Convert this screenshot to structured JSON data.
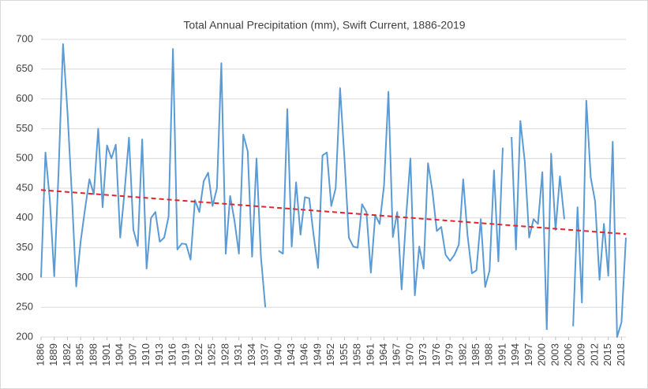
{
  "chart_data": {
    "type": "line",
    "title": "Total Annual Precipitation (mm), Swift Current, 1886-2019",
    "x": [
      1886,
      1887,
      1888,
      1889,
      1890,
      1891,
      1892,
      1893,
      1894,
      1895,
      1896,
      1897,
      1898,
      1899,
      1900,
      1901,
      1902,
      1903,
      1904,
      1905,
      1906,
      1907,
      1908,
      1909,
      1910,
      1911,
      1912,
      1913,
      1914,
      1915,
      1916,
      1917,
      1918,
      1919,
      1920,
      1921,
      1922,
      1923,
      1924,
      1925,
      1926,
      1927,
      1928,
      1929,
      1930,
      1931,
      1932,
      1933,
      1934,
      1935,
      1936,
      1937,
      1938,
      1939,
      1940,
      1941,
      1942,
      1943,
      1944,
      1945,
      1946,
      1947,
      1948,
      1949,
      1950,
      1951,
      1952,
      1953,
      1954,
      1955,
      1956,
      1957,
      1958,
      1959,
      1960,
      1961,
      1962,
      1963,
      1964,
      1965,
      1966,
      1967,
      1968,
      1969,
      1970,
      1971,
      1972,
      1973,
      1974,
      1975,
      1976,
      1977,
      1978,
      1979,
      1980,
      1981,
      1982,
      1983,
      1984,
      1985,
      1986,
      1987,
      1988,
      1989,
      1990,
      1991,
      1992,
      1993,
      1994,
      1995,
      1996,
      1997,
      1998,
      1999,
      2000,
      2001,
      2002,
      2003,
      2004,
      2005,
      2006,
      2007,
      2008,
      2009,
      2010,
      2011,
      2012,
      2013,
      2014,
      2015,
      2016,
      2017,
      2018,
      2019
    ],
    "series": [
      {
        "color": "#5b9bd5",
        "values": [
          300,
          510,
          430,
          302,
          480,
          692,
          580,
          440,
          285,
          360,
          415,
          465,
          440,
          550,
          418,
          522,
          500,
          523,
          367,
          445,
          535,
          380,
          353,
          532,
          315,
          400,
          410,
          360,
          367,
          402,
          684,
          347,
          357,
          356,
          330,
          430,
          410,
          462,
          476,
          420,
          450,
          660,
          340,
          437,
          395,
          340,
          540,
          512,
          335,
          500,
          335,
          250,
          null,
          null,
          345,
          340,
          583,
          352,
          460,
          372,
          435,
          433,
          370,
          316,
          505,
          510,
          420,
          450,
          618,
          500,
          367,
          352,
          350,
          423,
          410,
          308,
          405,
          390,
          455,
          612,
          368,
          410,
          280,
          400,
          500,
          270,
          352,
          315,
          492,
          445,
          378,
          385,
          338,
          328,
          338,
          355,
          465,
          370,
          307,
          312,
          398,
          284,
          312,
          480,
          327,
          518,
          null,
          536,
          347,
          563,
          495,
          367,
          398,
          390,
          477,
          213,
          508,
          380,
          470,
          398,
          null,
          218,
          418,
          258,
          597,
          468,
          428,
          296,
          390,
          303,
          528,
          200,
          225,
          367
        ]
      }
    ],
    "trend": {
      "color": "#e0262b",
      "values": [
        447,
        373
      ]
    },
    "xlim": [
      1886,
      2019
    ],
    "xticks": [
      1886,
      1889,
      1892,
      1895,
      1898,
      1901,
      1904,
      1907,
      1910,
      1913,
      1916,
      1919,
      1922,
      1925,
      1928,
      1931,
      1934,
      1937,
      1940,
      1943,
      1946,
      1949,
      1952,
      1955,
      1958,
      1961,
      1964,
      1967,
      1970,
      1973,
      1976,
      1979,
      1982,
      1985,
      1988,
      1991,
      1994,
      1997,
      2000,
      2003,
      2006,
      2009,
      2012,
      2015,
      2018
    ],
    "ylim": [
      200,
      700
    ],
    "yticks": [
      200,
      250,
      300,
      350,
      400,
      450,
      500,
      550,
      600,
      650,
      700
    ],
    "grid": true
  }
}
